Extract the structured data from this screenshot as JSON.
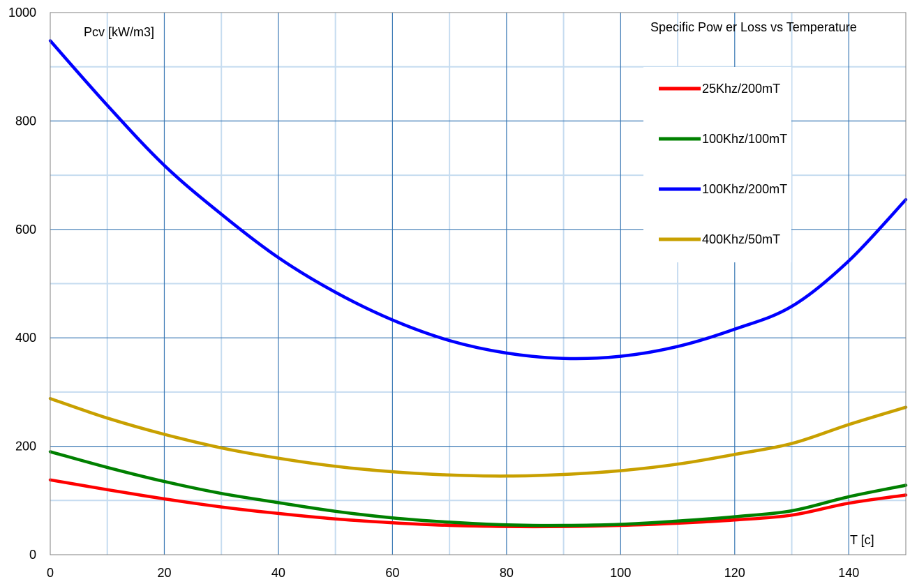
{
  "chart_data": {
    "type": "line",
    "title": "Specific Pow er Loss vs Temperature",
    "xlabel": "T [c]",
    "ylabel": "Pcv [kW/m3]",
    "xlim": [
      0,
      150
    ],
    "ylim": [
      0,
      1000
    ],
    "x_major_ticks": [
      0,
      20,
      40,
      60,
      80,
      100,
      120,
      140
    ],
    "x_tick_labels": [
      "0",
      "20",
      "40",
      "60",
      "80",
      "100",
      "120",
      "140"
    ],
    "y_major_ticks": [
      0,
      200,
      400,
      600,
      800,
      1000
    ],
    "y_tick_labels": [
      "0",
      "200",
      "400",
      "600",
      "800",
      "1000"
    ],
    "x_minor_ticks": [
      10,
      30,
      50,
      70,
      90,
      110,
      130
    ],
    "y_minor_ticks": [
      100,
      300,
      500,
      700,
      900
    ],
    "grid": true,
    "legend_position": "top-right",
    "series": [
      {
        "name": "25Khz/200mT",
        "color": "#ff0000",
        "x": [
          0,
          10,
          20,
          30,
          40,
          50,
          60,
          70,
          80,
          90,
          100,
          110,
          120,
          130,
          140,
          150
        ],
        "y": [
          138,
          120,
          103,
          88,
          76,
          66,
          59,
          54,
          52,
          52,
          54,
          58,
          64,
          73,
          95,
          110
        ]
      },
      {
        "name": "100Khz/100mT",
        "color": "#008000",
        "x": [
          0,
          10,
          20,
          30,
          40,
          50,
          60,
          70,
          80,
          90,
          100,
          110,
          120,
          130,
          140,
          150
        ],
        "y": [
          190,
          161,
          135,
          113,
          96,
          80,
          68,
          60,
          55,
          54,
          56,
          62,
          70,
          81,
          107,
          128
        ]
      },
      {
        "name": "100Khz/200mT",
        "color": "#0000ff",
        "x": [
          0,
          10,
          20,
          30,
          40,
          50,
          60,
          70,
          80,
          90,
          100,
          110,
          120,
          130,
          140,
          150
        ],
        "y": [
          948,
          829,
          718,
          628,
          548,
          484,
          433,
          395,
          372,
          362,
          366,
          384,
          416,
          458,
          542,
          655
        ]
      },
      {
        "name": "400Khz/50mT",
        "color": "#c8a000",
        "x": [
          0,
          10,
          20,
          30,
          40,
          50,
          60,
          70,
          80,
          90,
          100,
          110,
          120,
          130,
          140,
          150
        ],
        "y": [
          288,
          252,
          222,
          197,
          178,
          163,
          153,
          147,
          145,
          148,
          155,
          167,
          185,
          205,
          240,
          272
        ]
      }
    ]
  }
}
